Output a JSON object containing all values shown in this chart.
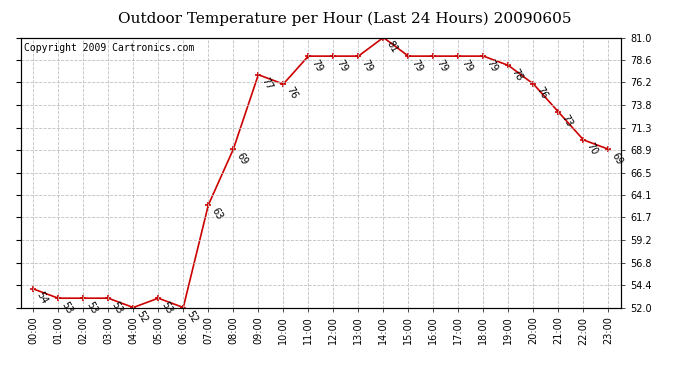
{
  "title": "Outdoor Temperature per Hour (Last 24 Hours) 20090605",
  "copyright": "Copyright 2009 Cartronics.com",
  "hours": [
    "00:00",
    "01:00",
    "02:00",
    "03:00",
    "04:00",
    "05:00",
    "06:00",
    "07:00",
    "08:00",
    "09:00",
    "10:00",
    "11:00",
    "12:00",
    "13:00",
    "14:00",
    "15:00",
    "16:00",
    "17:00",
    "18:00",
    "19:00",
    "20:00",
    "21:00",
    "22:00",
    "23:00"
  ],
  "temps": [
    54,
    53,
    53,
    53,
    52,
    53,
    52,
    63,
    69,
    77,
    76,
    79,
    79,
    79,
    81,
    79,
    79,
    79,
    79,
    78,
    76,
    73,
    70,
    69
  ],
  "ylim": [
    52.0,
    81.0
  ],
  "yticks_right": [
    52.0,
    54.4,
    56.8,
    59.2,
    61.7,
    64.1,
    66.5,
    68.9,
    71.3,
    73.8,
    76.2,
    78.6,
    81.0
  ],
  "line_color": "#cc0000",
  "bg_color": "#ffffff",
  "grid_color": "#c0c0c0",
  "title_fontsize": 11,
  "copyright_fontsize": 7,
  "annotation_fontsize": 7,
  "tick_fontsize": 7
}
